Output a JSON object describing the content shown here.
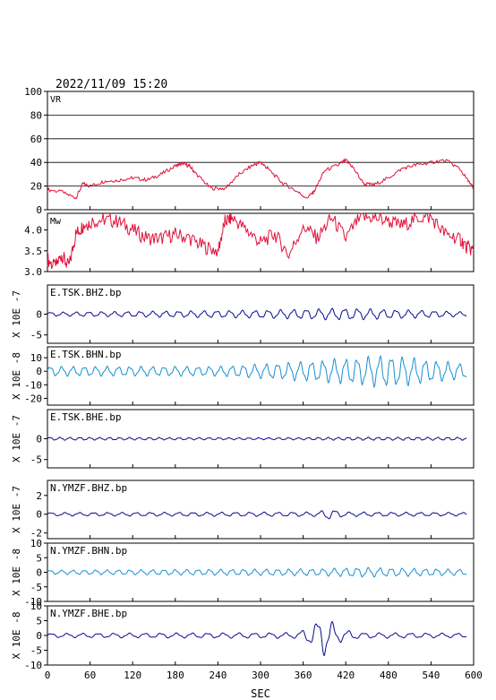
{
  "header": {
    "datetime": "2022/11/09  15:20"
  },
  "x_axis": {
    "label": "SEC",
    "ticks": [
      "0",
      "60",
      "120",
      "180",
      "240",
      "300",
      "360",
      "420",
      "480",
      "540",
      "600"
    ],
    "xlim": [
      0,
      600
    ]
  },
  "colors": {
    "vr": "#e0103a",
    "mw": "#e0103a",
    "dark_blue": "#0a0a8c",
    "light_blue": "#1a8fd0",
    "axis": "#000000"
  },
  "chart_data": [
    {
      "type": "line",
      "id": "vr",
      "title": "VR",
      "ylim": [
        0,
        100
      ],
      "ticks": [
        0,
        20,
        40,
        60,
        80,
        100
      ],
      "tick_labels": [
        "0",
        "20",
        "40",
        "60",
        "80",
        "100"
      ],
      "grid": true,
      "color": "#e0103a",
      "x": [
        0,
        20,
        40,
        50,
        60,
        80,
        100,
        120,
        140,
        160,
        180,
        190,
        200,
        210,
        230,
        250,
        270,
        290,
        300,
        310,
        330,
        350,
        365,
        375,
        390,
        410,
        420,
        430,
        445,
        460,
        480,
        500,
        520,
        540,
        560,
        580,
        595,
        600
      ],
      "y": [
        17,
        15,
        10,
        22,
        20,
        24,
        25,
        27,
        25,
        30,
        37,
        39,
        37,
        30,
        18,
        18,
        30,
        38,
        40,
        35,
        23,
        16,
        10,
        15,
        33,
        38,
        42,
        36,
        22,
        21,
        27,
        35,
        38,
        40,
        42,
        35,
        22,
        18
      ]
    },
    {
      "type": "line",
      "id": "mw",
      "title": "Mw",
      "ylim": [
        3.0,
        4.4
      ],
      "ticks": [
        3.0,
        3.5,
        4.0
      ],
      "tick_labels": [
        "3.0",
        "3.5",
        "4.0"
      ],
      "grid": false,
      "color": "#e0103a",
      "x": [
        0,
        10,
        20,
        30,
        40,
        50,
        60,
        80,
        100,
        120,
        140,
        160,
        180,
        200,
        220,
        240,
        250,
        260,
        280,
        300,
        320,
        340,
        360,
        380,
        400,
        420,
        440,
        460,
        480,
        500,
        520,
        540,
        560,
        580,
        590,
        600
      ],
      "y": [
        3.3,
        3.1,
        3.4,
        3.1,
        3.9,
        4.1,
        4.2,
        4.25,
        4.2,
        4.0,
        3.8,
        3.8,
        3.9,
        3.8,
        3.6,
        3.5,
        4.2,
        4.3,
        4.0,
        3.7,
        3.9,
        3.4,
        4.1,
        3.8,
        4.3,
        3.8,
        4.3,
        4.3,
        4.2,
        4.1,
        4.3,
        4.3,
        3.9,
        3.8,
        3.6,
        3.5
      ]
    },
    {
      "type": "line",
      "id": "tsk_bhz",
      "title": "E.TSK.BHZ.bp",
      "ylabel": "X 10E -7",
      "ylim": [
        -7,
        7
      ],
      "ticks": [
        -5,
        0
      ],
      "tick_labels": [
        "-5",
        "0"
      ],
      "color": "#0a0a8c",
      "amp_envelope": [
        [
          0,
          0.4
        ],
        [
          300,
          0.8
        ],
        [
          420,
          1.2
        ],
        [
          540,
          0.7
        ],
        [
          600,
          0.4
        ]
      ],
      "period": 18
    },
    {
      "type": "line",
      "id": "tsk_bhn",
      "title": "E.TSK.BHN.bp",
      "ylabel": "X 10E -8",
      "ylim": [
        -25,
        18
      ],
      "ticks": [
        -20,
        -10,
        0,
        10
      ],
      "tick_labels": [
        "-20",
        "-10",
        "0",
        "10"
      ],
      "color": "#1a8fd0",
      "amp_envelope": [
        [
          0,
          3
        ],
        [
          240,
          3
        ],
        [
          360,
          6
        ],
        [
          480,
          10
        ],
        [
          520,
          8
        ],
        [
          600,
          4
        ]
      ],
      "period": 16
    },
    {
      "type": "line",
      "id": "tsk_bhe",
      "title": "E.TSK.BHE.bp",
      "ylabel": "X 10E -7",
      "ylim": [
        -7,
        7
      ],
      "ticks": [
        -5,
        0
      ],
      "tick_labels": [
        "-5",
        "0"
      ],
      "color": "#0a0a8c",
      "amp_envelope": [
        [
          0,
          0.3
        ],
        [
          300,
          0.2
        ],
        [
          420,
          0.3
        ],
        [
          600,
          0.3
        ]
      ],
      "period": 14
    },
    {
      "type": "line",
      "id": "ymzf_bhz",
      "title": "N.YMZF.BHZ.bp",
      "ylabel": "X 10E -7",
      "ylim": [
        -2.6,
        3.6
      ],
      "ticks": [
        -2,
        0,
        2
      ],
      "tick_labels": [
        "-2",
        "0",
        "2"
      ],
      "color": "#0a0a8c",
      "amp_envelope": [
        [
          0,
          0.15
        ],
        [
          380,
          0.2
        ],
        [
          395,
          0.5
        ],
        [
          420,
          0.2
        ],
        [
          600,
          0.15
        ]
      ],
      "period": 20
    },
    {
      "type": "line",
      "id": "ymzf_bhn",
      "title": "N.YMZF.BHN.bp",
      "ylabel": "X 10E -8",
      "ylim": [
        -10,
        10
      ],
      "ticks": [
        -10,
        -5,
        0,
        5,
        10
      ],
      "tick_labels": [
        "-10",
        "-5",
        "0",
        "5",
        "10"
      ],
      "color": "#1a8fd0",
      "amp_envelope": [
        [
          0,
          0.6
        ],
        [
          380,
          1.0
        ],
        [
          440,
          1.4
        ],
        [
          600,
          0.8
        ]
      ],
      "period": 16
    },
    {
      "type": "line",
      "id": "ymzf_bhe",
      "title": "N.YMZF.BHE.bp",
      "ylabel": "X 10E -8",
      "ylim": [
        -10,
        10
      ],
      "ticks": [
        -10,
        -5,
        0,
        5,
        10
      ],
      "tick_labels": [
        "-10",
        "-5",
        "0",
        "5",
        "10"
      ],
      "color": "#0a0a8c",
      "amp_envelope": [
        [
          0,
          0.6
        ],
        [
          350,
          0.8
        ],
        [
          370,
          2.5
        ],
        [
          390,
          6
        ],
        [
          410,
          2
        ],
        [
          440,
          0.8
        ],
        [
          600,
          0.6
        ]
      ],
      "period": 22
    }
  ]
}
